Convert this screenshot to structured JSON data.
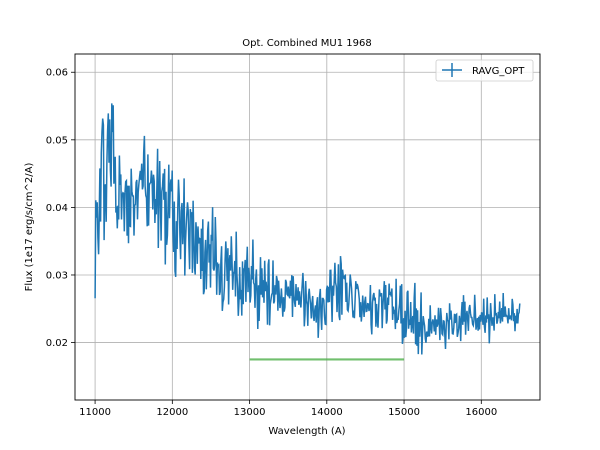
{
  "chart_data": {
    "type": "line",
    "title": "Opt. Combined MU1 1968",
    "xlabel": "Wavelength (A)",
    "ylabel": "Flux (1e17 erg/s/cm^2/A)",
    "xlim": [
      10740,
      16760
    ],
    "ylim": [
      0.0115,
      0.0627
    ],
    "xticks": [
      11000,
      12000,
      13000,
      14000,
      15000,
      16000
    ],
    "xtick_labels": [
      "11000",
      "12000",
      "13000",
      "14000",
      "15000",
      "16000"
    ],
    "yticks": [
      0.02,
      0.03,
      0.04,
      0.05,
      0.06
    ],
    "ytick_labels": [
      "0.02",
      "0.03",
      "0.04",
      "0.05",
      "0.06"
    ],
    "grid": true,
    "legend_position": "top-right",
    "series": [
      {
        "name": "RAVG_OPT",
        "color": "#1f77b4",
        "errorbars": true,
        "x": [
          11000,
          11100,
          11200,
          11300,
          11400,
          11500,
          11600,
          11700,
          11800,
          11900,
          12000,
          12100,
          12200,
          12300,
          12400,
          12500,
          12600,
          12700,
          12800,
          12900,
          13000,
          13100,
          13200,
          13300,
          13400,
          13500,
          13600,
          13700,
          13800,
          13900,
          14000,
          14100,
          14200,
          14300,
          14400,
          14500,
          14600,
          14700,
          14800,
          14900,
          15000,
          15100,
          15200,
          15300,
          15400,
          15500,
          15600,
          15700,
          15800,
          15900,
          16000,
          16100,
          16200,
          16300,
          16400,
          16500
        ],
        "y": [
          0.032,
          0.046,
          0.048,
          0.042,
          0.039,
          0.041,
          0.045,
          0.042,
          0.044,
          0.043,
          0.04,
          0.038,
          0.036,
          0.034,
          0.032,
          0.033,
          0.031,
          0.03,
          0.029,
          0.028,
          0.029,
          0.028,
          0.028,
          0.027,
          0.027,
          0.027,
          0.026,
          0.026,
          0.025,
          0.025,
          0.026,
          0.028,
          0.028,
          0.027,
          0.026,
          0.025,
          0.025,
          0.025,
          0.025,
          0.025,
          0.023,
          0.024,
          0.023,
          0.023,
          0.023,
          0.023,
          0.023,
          0.023,
          0.024,
          0.024,
          0.024,
          0.024,
          0.024,
          0.024,
          0.024,
          0.024
        ],
        "noise": [
          0.006,
          0.007,
          0.008,
          0.007,
          0.006,
          0.006,
          0.008,
          0.007,
          0.008,
          0.008,
          0.007,
          0.006,
          0.006,
          0.006,
          0.006,
          0.006,
          0.006,
          0.005,
          0.005,
          0.005,
          0.005,
          0.005,
          0.005,
          0.004,
          0.004,
          0.004,
          0.004,
          0.004,
          0.004,
          0.004,
          0.005,
          0.005,
          0.005,
          0.004,
          0.004,
          0.004,
          0.004,
          0.004,
          0.004,
          0.004,
          0.004,
          0.004,
          0.004,
          0.003,
          0.003,
          0.003,
          0.003,
          0.003,
          0.003,
          0.003,
          0.003,
          0.003,
          0.003,
          0.003,
          0.003,
          0.003
        ]
      }
    ],
    "range_marker": {
      "x_start": 13000,
      "x_end": 15000,
      "y": 0.0175,
      "color": "#4daf4a"
    }
  }
}
